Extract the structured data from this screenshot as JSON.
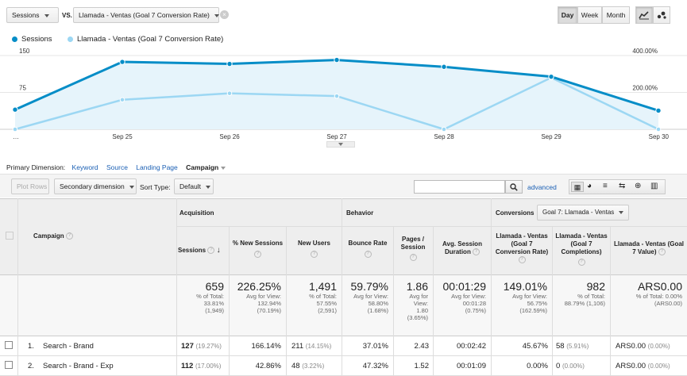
{
  "top": {
    "metric1": "Sessions",
    "vs": "VS.",
    "metric2": "Llamada - Ventas (Goal 7 Conversion Rate)",
    "day": "Day",
    "week": "Week",
    "month": "Month"
  },
  "legend": {
    "s1": "Sessions",
    "s2": "Llamada - Ventas (Goal 7 Conversion Rate)"
  },
  "chart_data": {
    "type": "line",
    "x": [
      "…",
      "Sep 25",
      "Sep 26",
      "Sep 27",
      "Sep 28",
      "Sep 29",
      "Sep 30"
    ],
    "x_tick_labels": [
      "…",
      "Sep 25",
      "Sep 26",
      "Sep 27",
      "Sep 28",
      "Sep 29",
      "Sep 30"
    ],
    "y_left_ticks": [
      "150",
      "75"
    ],
    "y_right_ticks": [
      "400.00%",
      "200.00%"
    ],
    "y_left_range": [
      0,
      150
    ],
    "y_right_range": [
      0,
      400
    ],
    "series": [
      {
        "name": "Sessions",
        "axis": "left",
        "color": "#058dc7",
        "values": [
          40,
          137,
          133,
          141,
          127,
          107,
          38
        ]
      },
      {
        "name": "Llamada - Ventas (Goal 7 Conversion Rate)",
        "axis": "right",
        "color": "#9cd7f3",
        "values": [
          0,
          160,
          195,
          180,
          0,
          280,
          0
        ]
      }
    ]
  },
  "dimension": {
    "label": "Primary Dimension:",
    "keyword": "Keyword",
    "source": "Source",
    "landing": "Landing Page",
    "campaign": "Campaign"
  },
  "toolbar": {
    "plot_rows": "Plot Rows",
    "secondary": "Secondary dimension",
    "sort_type_label": "Sort Type:",
    "sort_default": "Default",
    "advanced": "advanced"
  },
  "table": {
    "acquisition": "Acquisition",
    "behavior": "Behavior",
    "conversions": "Conversions",
    "goal_select": "Goal 7: Llamada - Ventas",
    "campaign_header": "Campaign",
    "cols": [
      "Sessions",
      "% New Sessions",
      "New Users",
      "Bounce Rate",
      "Pages / Session",
      "Avg. Session Duration",
      "Llamada - Ventas (Goal 7 Conversion Rate)",
      "Llamada - Ventas (Goal 7 Completions)",
      "Llamada - Ventas (Goal 7 Value)"
    ],
    "totals": [
      {
        "big": "659",
        "l1": "% of Total:",
        "l2": "33.81%",
        "l3": "(1,949)"
      },
      {
        "big": "226.25%",
        "l1": "Avg for View:",
        "l2": "132.94%",
        "l3": "(70.19%)"
      },
      {
        "big": "1,491",
        "l1": "% of Total:",
        "l2": "57.55%",
        "l3": "(2,591)"
      },
      {
        "big": "59.79%",
        "l1": "Avg for View:",
        "l2": "58.80%",
        "l3": "(1.68%)"
      },
      {
        "big": "1.86",
        "l1": "Avg for",
        "l2": "View:",
        "l3": "1.80",
        "l4": "(3.65%)"
      },
      {
        "big": "00:01:29",
        "l1": "Avg for View:",
        "l2": "00:01:28",
        "l3": "(0.75%)"
      },
      {
        "big": "149.01%",
        "l1": "Avg for View:",
        "l2": "56.75%",
        "l3": "(162.59%)"
      },
      {
        "big": "982",
        "l1": "% of Total:",
        "l2": "88.79% (1,106)",
        "l3": ""
      },
      {
        "big": "ARS0.00",
        "l1": "% of Total: 0.00%",
        "l2": "(ARS0.00)",
        "l3": ""
      }
    ],
    "rows": [
      {
        "num": "1.",
        "name": "Search - Brand",
        "sessions": "127",
        "sessions_pct": "(19.27%)",
        "new_sessions": "166.14%",
        "new_users": "211",
        "new_users_pct": "(14.15%)",
        "bounce": "37.01%",
        "pages": "2.43",
        "duration": "00:02:42",
        "conv_rate": "45.67%",
        "completions": "58",
        "completions_pct": "(5.91%)",
        "value": "ARS0.00",
        "value_pct": "(0.00%)"
      },
      {
        "num": "2.",
        "name": "Search - Brand - Exp",
        "sessions": "112",
        "sessions_pct": "(17.00%)",
        "new_sessions": "42.86%",
        "new_users": "48",
        "new_users_pct": "(3.22%)",
        "bounce": "47.32%",
        "pages": "1.52",
        "duration": "00:01:09",
        "conv_rate": "0.00%",
        "completions": "0",
        "completions_pct": "(0.00%)",
        "value": "ARS0.00",
        "value_pct": "(0.00%)"
      }
    ]
  },
  "icons": {
    "search": "search-icon",
    "close": "close-icon",
    "line_chart": "line-chart-icon",
    "motion": "motion-chart-icon"
  }
}
